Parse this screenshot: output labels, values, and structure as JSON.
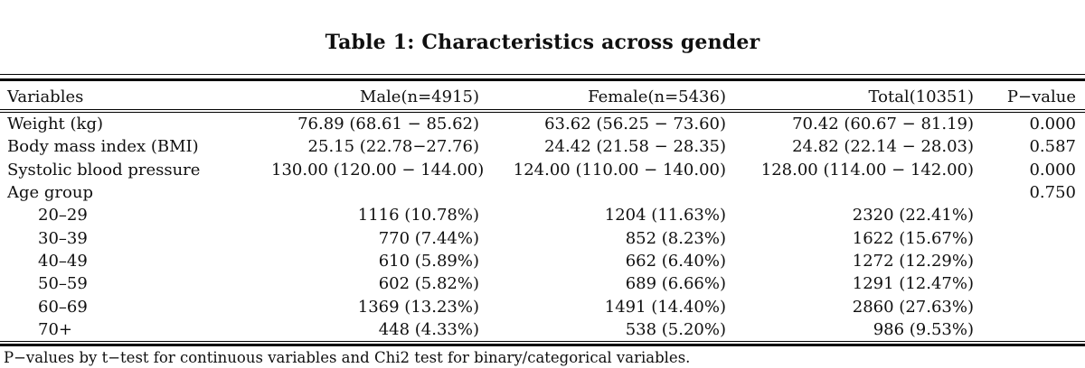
{
  "caption": "Table 1: Characteristics across gender",
  "colors": {
    "text": "#0f0f0f",
    "rule": "#000000",
    "background": "#ffffff"
  },
  "table": {
    "columns": [
      "Variables",
      "Male(n=4915)",
      "Female(n=5436)",
      "Total(10351)",
      "P−value"
    ],
    "rows": [
      {
        "label": "Weight (kg)",
        "male": "76.89 (68.61 − 85.62)",
        "female": "63.62 (56.25 − 73.60)",
        "total": "70.42 (60.67 − 81.19)",
        "p": "0.000"
      },
      {
        "label": "Body mass index (BMI)",
        "male": "25.15 (22.78−27.76)",
        "female": "24.42 (21.58 − 28.35)",
        "total": "24.82 (22.14 − 28.03)",
        "p": "0.587"
      },
      {
        "label": "Systolic blood pressure",
        "male": "130.00 (120.00 − 144.00)",
        "female": "124.00 (110.00 − 140.00)",
        "total": "128.00 (114.00 − 142.00)",
        "p": "0.000"
      },
      {
        "label": "Age group",
        "male": "",
        "female": "",
        "total": "",
        "p": "0.750"
      },
      {
        "label": "20–29",
        "male": "1116 (10.78%)",
        "female": "1204 (11.63%)",
        "total": "2320 (22.41%)",
        "p": ""
      },
      {
        "label": "30–39",
        "male": "770 (7.44%)",
        "female": "852 (8.23%)",
        "total": "1622 (15.67%)",
        "p": ""
      },
      {
        "label": "40–49",
        "male": "610 (5.89%)",
        "female": "662 (6.40%)",
        "total": "1272 (12.29%)",
        "p": ""
      },
      {
        "label": "50–59",
        "male": "602 (5.82%)",
        "female": "689 (6.66%)",
        "total": "1291 (12.47%)",
        "p": ""
      },
      {
        "label": "60–69",
        "male": "1369 (13.23%)",
        "female": "1491 (14.40%)",
        "total": "2860 (27.63%)",
        "p": ""
      },
      {
        "label": "70+",
        "male": "448 (4.33%)",
        "female": "538 (5.20%)",
        "total": "986 (9.53%)",
        "p": ""
      }
    ]
  },
  "footnote": "P−values by t−test for continuous variables and Chi2 test for binary/categorical variables."
}
